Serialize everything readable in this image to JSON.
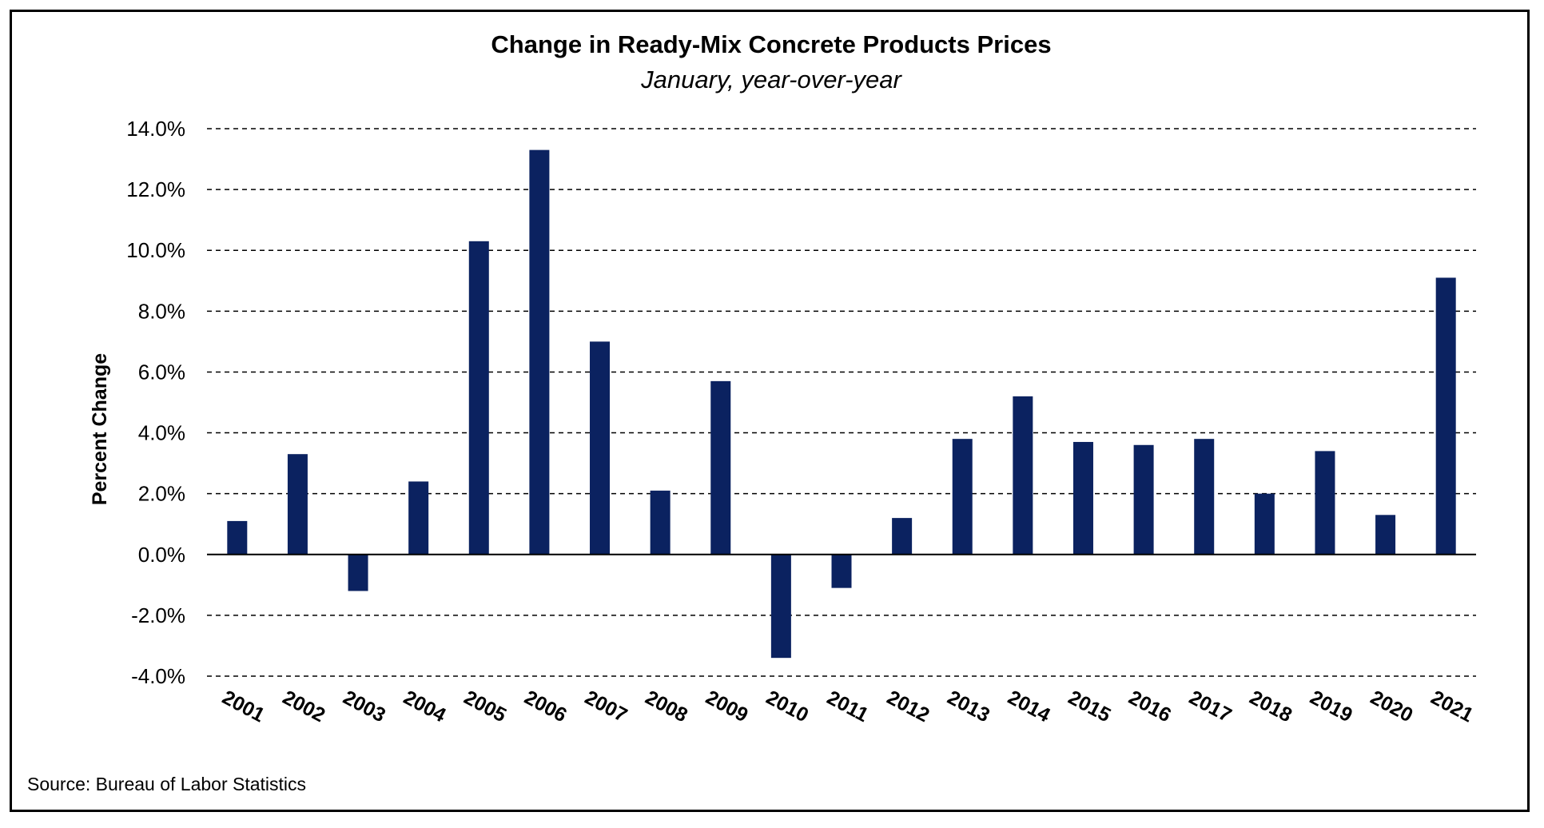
{
  "chart_data": {
    "type": "bar",
    "title": "Change in Ready-Mix Concrete Products Prices",
    "subtitle": "January, year-over-year",
    "xlabel": "",
    "ylabel": "Percent Change",
    "source": "Source:  Bureau of Labor Statistics",
    "categories": [
      "2001",
      "2002",
      "2003",
      "2004",
      "2005",
      "2006",
      "2007",
      "2008",
      "2009",
      "2010",
      "2011",
      "2012",
      "2013",
      "2014",
      "2015",
      "2016",
      "2017",
      "2018",
      "2019",
      "2020",
      "2021"
    ],
    "values": [
      1.1,
      3.3,
      -1.2,
      2.4,
      10.3,
      13.3,
      7.0,
      2.1,
      5.7,
      -3.4,
      -1.1,
      1.2,
      3.8,
      5.2,
      3.7,
      3.6,
      3.8,
      2.0,
      3.4,
      1.3,
      9.1
    ],
    "ylim": [
      -4,
      14
    ],
    "yticks": [
      14,
      12,
      10,
      8,
      6,
      4,
      2,
      0,
      -2,
      -4
    ],
    "ytick_labels": [
      "14.0%",
      "12.0%",
      "10.0%",
      "8.0%",
      "6.0%",
      "4.0%",
      "2.0%",
      "0.0%",
      "-2.0%",
      "-4.0%"
    ],
    "grid": true,
    "legend": "none",
    "bar_color": "#0b2260"
  }
}
